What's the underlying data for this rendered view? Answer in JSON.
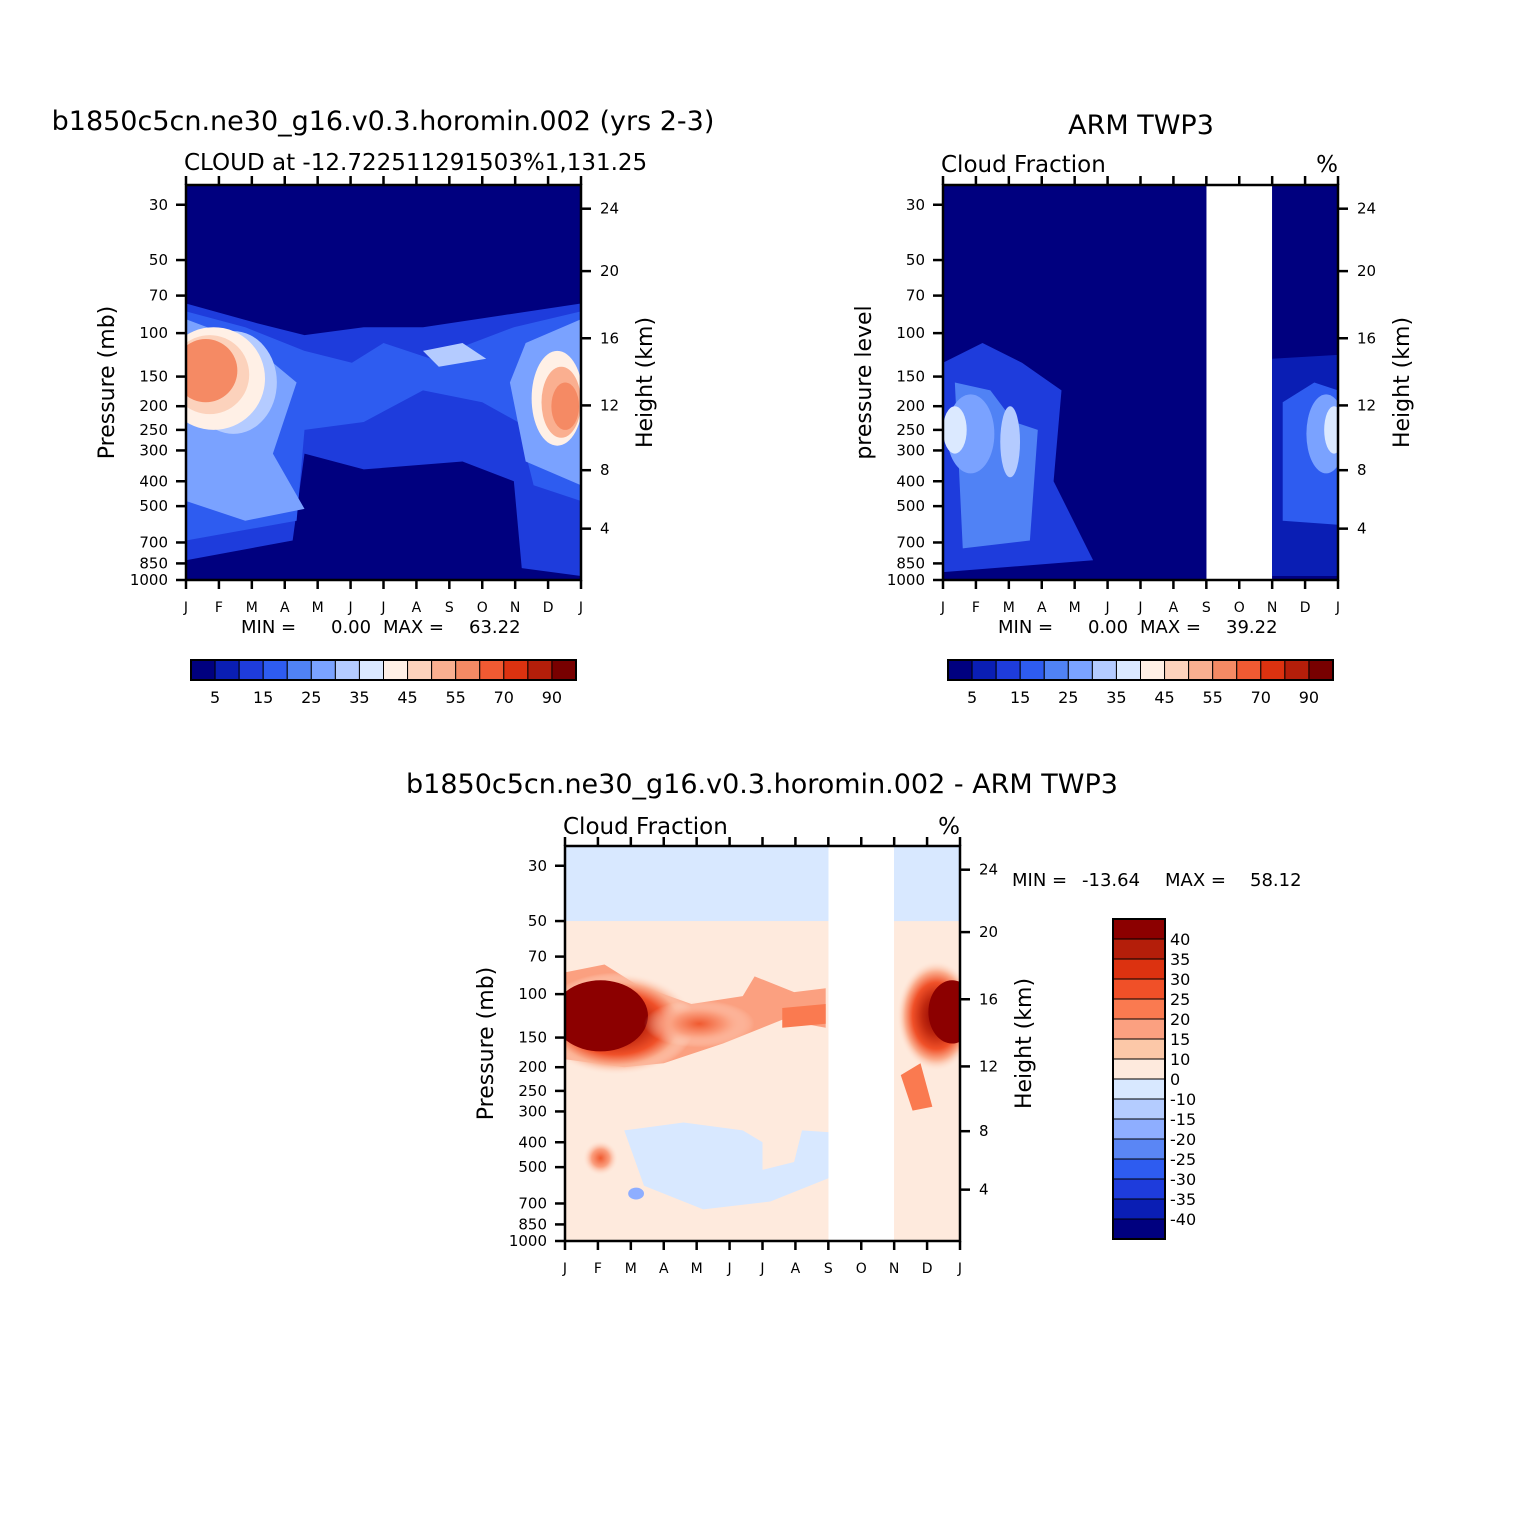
{
  "chart_data": [
    {
      "type": "heatmap",
      "title": "b1850c5cn.ne30_g16.v0.3.horomin.002 (yrs 2-3)",
      "subtitle_left": "CLOUD at -12.722511291503%1,131.25",
      "subtitle_right": "",
      "ylabel": "Pressure (mb)",
      "y2label": "Height (km)",
      "x": [
        "J",
        "F",
        "M",
        "A",
        "M",
        "J",
        "J",
        "A",
        "S",
        "O",
        "N",
        "D",
        "J"
      ],
      "pressure_ticks": [
        "30",
        "50",
        "70",
        "100",
        "150",
        "200",
        "250",
        "300",
        "400",
        "500",
        "700",
        "850",
        "1000"
      ],
      "height_ticks": [
        "24",
        "20",
        "16",
        "12",
        "8",
        "4"
      ],
      "min_label": "MIN =",
      "min_value": "0.00",
      "max_label": "MAX =",
      "max_value": "63.22",
      "colorbar_labels": [
        "5",
        "15",
        "25",
        "35",
        "45",
        "55",
        "70",
        "90"
      ],
      "missing_months": []
    },
    {
      "type": "heatmap",
      "title": "ARM TWP3",
      "subtitle_left": "Cloud Fraction",
      "subtitle_right": "%",
      "ylabel": "pressure level",
      "y2label": "Height (km)",
      "x": [
        "J",
        "F",
        "M",
        "A",
        "M",
        "J",
        "J",
        "A",
        "S",
        "O",
        "N",
        "D",
        "J"
      ],
      "pressure_ticks": [
        "30",
        "50",
        "70",
        "100",
        "150",
        "200",
        "250",
        "300",
        "400",
        "500",
        "700",
        "850",
        "1000"
      ],
      "height_ticks": [
        "24",
        "20",
        "16",
        "12",
        "8",
        "4"
      ],
      "min_label": "MIN =",
      "min_value": "0.00",
      "max_label": "MAX =",
      "max_value": "39.22",
      "colorbar_labels": [
        "5",
        "15",
        "25",
        "35",
        "45",
        "55",
        "70",
        "90"
      ],
      "missing_months": [
        "S",
        "O",
        "N"
      ]
    },
    {
      "type": "heatmap",
      "title": "b1850c5cn.ne30_g16.v0.3.horomin.002 - ARM TWP3",
      "subtitle_left": "Cloud Fraction",
      "subtitle_right": "%",
      "ylabel": "Pressure (mb)",
      "y2label": "Height (km)",
      "x": [
        "J",
        "F",
        "M",
        "A",
        "M",
        "J",
        "J",
        "A",
        "S",
        "O",
        "N",
        "D",
        "J"
      ],
      "pressure_ticks": [
        "30",
        "50",
        "70",
        "100",
        "150",
        "200",
        "250",
        "300",
        "400",
        "500",
        "700",
        "850",
        "1000"
      ],
      "height_ticks": [
        "24",
        "20",
        "16",
        "12",
        "8",
        "4"
      ],
      "min_label": "MIN =",
      "min_value": "-13.64",
      "max_label": "MAX =",
      "max_value": "58.12",
      "colorbar_labels": [
        "40",
        "35",
        "30",
        "25",
        "20",
        "15",
        "10",
        "0",
        "-10",
        "-15",
        "-20",
        "-25",
        "-30",
        "-35",
        "-40"
      ],
      "missing_months": [
        "S",
        "O",
        "N"
      ]
    }
  ],
  "colors": {
    "abs_scale": [
      "#00007f",
      "#0a1eb4",
      "#1e3cdc",
      "#2e5cf0",
      "#5082f5",
      "#7aa2ff",
      "#b4cbff",
      "#dbe9ff",
      "#fff0e6",
      "#fcd2bc",
      "#faaf90",
      "#f58a64",
      "#f05a32",
      "#dc3210",
      "#b41e0a",
      "#780000"
    ],
    "diff_scale": [
      "#8c0000",
      "#b41e0a",
      "#dc3210",
      "#f05028",
      "#fa7a50",
      "#fba080",
      "#fcc8a8",
      "#feeadd",
      "#d8e8ff",
      "#b4ccff",
      "#8eaeff",
      "#5a86f5",
      "#2e5cf0",
      "#1e3cdc",
      "#0a1eb4",
      "#00007f"
    ],
    "missing": "#ffffff"
  }
}
